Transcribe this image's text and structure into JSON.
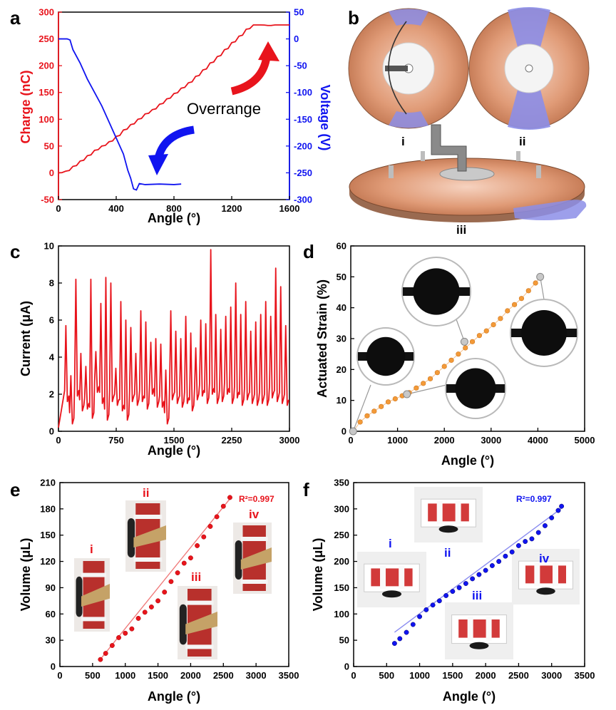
{
  "panels": {
    "a": {
      "letter": "a",
      "annotation": "Overrange"
    },
    "b": {
      "letter": "b",
      "labels": [
        "i",
        "ii",
        "iii"
      ]
    },
    "c": {
      "letter": "c"
    },
    "d": {
      "letter": "d"
    },
    "e": {
      "letter": "e",
      "r2": "R²=0.997",
      "labels": [
        "i",
        "ii",
        "iii",
        "iv"
      ]
    },
    "f": {
      "letter": "f",
      "r2": "R²=0.997",
      "labels": [
        "i",
        "ii",
        "iii",
        "iv"
      ]
    }
  },
  "colors": {
    "red": "#e8141c",
    "blue": "#1014f0",
    "orange": "#f39a38",
    "copper": "#d8906c",
    "lavender": "#8c8ee8"
  },
  "chart_data": [
    {
      "id": "a",
      "type": "line",
      "xlabel": "Angle (°)",
      "ylabel": "Charge (nC)",
      "y2label": "Voltage (V)",
      "xlim": [
        0,
        1600
      ],
      "ylim": [
        -50,
        300
      ],
      "y2lim": [
        -300,
        50
      ],
      "xticks": [
        0,
        400,
        800,
        1200,
        1600
      ],
      "yticks": [
        -50,
        0,
        50,
        100,
        150,
        200,
        250,
        300
      ],
      "y2ticks": [
        -300,
        -250,
        -200,
        -150,
        -100,
        -50,
        0,
        50
      ],
      "series": [
        {
          "axis": "left",
          "color": "#e8141c",
          "x": [
            0,
            50,
            100,
            150,
            200,
            250,
            300,
            350,
            400,
            450,
            500,
            550,
            600,
            650,
            700,
            750,
            800,
            850,
            900,
            950,
            1000,
            1050,
            1100,
            1150,
            1200,
            1250,
            1300,
            1350,
            1400,
            1450,
            1500,
            1550,
            1600
          ],
          "y": [
            0,
            3,
            12,
            22,
            32,
            42,
            50,
            58,
            68,
            80,
            90,
            100,
            110,
            118,
            128,
            138,
            148,
            158,
            168,
            180,
            192,
            205,
            217,
            230,
            243,
            255,
            268,
            276,
            276,
            275,
            276,
            276,
            276
          ]
        },
        {
          "axis": "right",
          "color": "#1014f0",
          "x": [
            0,
            60,
            80,
            100,
            150,
            200,
            250,
            300,
            350,
            400,
            450,
            480,
            500,
            520,
            540,
            560,
            600,
            700,
            800,
            850
          ],
          "y": [
            0,
            0,
            -2,
            -20,
            -45,
            -75,
            -100,
            -125,
            -155,
            -185,
            -215,
            -245,
            -260,
            -280,
            -282,
            -270,
            -272,
            -271,
            -272,
            -271
          ]
        }
      ]
    },
    {
      "id": "c",
      "type": "line",
      "xlabel": "Angle (°)",
      "ylabel": "Current (μA)",
      "xlim": [
        0,
        3000
      ],
      "ylim": [
        0,
        10
      ],
      "xticks": [
        0,
        750,
        1500,
        2250,
        3000
      ],
      "yticks": [
        0,
        2,
        4,
        6,
        8,
        10
      ],
      "series": [
        {
          "color": "#e8141c",
          "peaks": [
            5.7,
            3.0,
            8.2,
            4.2,
            3.5,
            8.2,
            4.3,
            6.9,
            8.3,
            8.0,
            3.4,
            7.0,
            6.0,
            5.6,
            4.2,
            6.5,
            5.9,
            4.8,
            5.0,
            4.7,
            3.3,
            6.5,
            5.4,
            5.0,
            6.2,
            5.3,
            4.5,
            6.0,
            5.8,
            9.8,
            6.3,
            5.5,
            6.2,
            6.7,
            8.0,
            6.3,
            7.0,
            5.4,
            5.9,
            6.3,
            7.0,
            6.2,
            8.8,
            7.8,
            5.7
          ],
          "troughs": [
            1.6,
            0.4,
            1.9,
            1.1,
            1.2,
            0.7,
            2.1,
            1.5,
            0.6,
            1.6,
            1.4,
            1.1,
            0.6,
            1.6,
            1.4,
            1.6,
            1.2,
            2.0,
            1.3,
            1.3,
            0.4,
            1.7,
            1.5,
            1.3,
            1.5,
            1.1,
            1.7,
            1.9,
            1.5,
            2.0,
            1.5,
            1.6,
            2.0,
            1.5,
            1.8,
            1.4,
            1.7,
            1.5,
            1.4,
            1.5,
            1.4,
            1.8,
            1.6,
            1.5,
            1.4
          ]
        }
      ]
    },
    {
      "id": "d",
      "type": "scatter",
      "xlabel": "Angle (°)",
      "ylabel": "Actuated Strain (%)",
      "xlim": [
        0,
        5000
      ],
      "ylim": [
        0,
        60
      ],
      "xticks": [
        0,
        1000,
        2000,
        3000,
        4000,
        5000
      ],
      "yticks": [
        0,
        10,
        20,
        30,
        40,
        50,
        60
      ],
      "series": [
        {
          "color": "#f39a38",
          "x": [
            50,
            200,
            350,
            500,
            650,
            800,
            950,
            1100,
            1250,
            1400,
            1550,
            1700,
            1850,
            2000,
            2150,
            2300,
            2450,
            2600,
            2750,
            2900,
            3050,
            3200,
            3350,
            3500,
            3650,
            3800,
            3950,
            4050
          ],
          "y": [
            0,
            3,
            5,
            6.5,
            8,
            9.5,
            10.5,
            11.5,
            12.5,
            14,
            15.5,
            17,
            19,
            21,
            23,
            25,
            27,
            29,
            31,
            32.5,
            34.5,
            36.5,
            39,
            41,
            43,
            45.5,
            48,
            50
          ]
        }
      ],
      "highlighted": [
        {
          "x": 50,
          "y": 0
        },
        {
          "x": 1200,
          "y": 12
        },
        {
          "x": 2430,
          "y": 29
        },
        {
          "x": 4050,
          "y": 50
        }
      ]
    },
    {
      "id": "e",
      "type": "scatter",
      "xlabel": "Angle (°)",
      "ylabel": "Volume (μL)",
      "xlim": [
        0,
        3500
      ],
      "ylim": [
        0,
        210
      ],
      "xticks": [
        0,
        500,
        1000,
        1500,
        2000,
        2500,
        3000,
        3500
      ],
      "yticks": [
        0,
        30,
        60,
        90,
        120,
        150,
        180,
        210
      ],
      "fit": {
        "slope": 0.0925,
        "intercept": -49
      },
      "series": [
        {
          "color": "#e8141c",
          "x": [
            620,
            700,
            800,
            900,
            1000,
            1100,
            1200,
            1300,
            1400,
            1500,
            1600,
            1700,
            1800,
            1900,
            2000,
            2100,
            2200,
            2300,
            2400,
            2500,
            2600
          ],
          "y": [
            8,
            15,
            24,
            33,
            38,
            43,
            55,
            62,
            68,
            75,
            85,
            97,
            107,
            118,
            124,
            138,
            148,
            160,
            171,
            183,
            193
          ]
        }
      ]
    },
    {
      "id": "f",
      "type": "scatter",
      "xlabel": "Angle (°)",
      "ylabel": "Volume (μL)",
      "xlim": [
        0,
        3500
      ],
      "ylim": [
        0,
        350
      ],
      "xticks": [
        0,
        500,
        1000,
        1500,
        2000,
        2500,
        3000,
        3500
      ],
      "yticks": [
        0,
        50,
        100,
        150,
        200,
        250,
        300,
        350
      ],
      "fit": {
        "slope": 0.0972,
        "intercept": -5
      },
      "series": [
        {
          "color": "#1014f0",
          "x": [
            620,
            700,
            800,
            900,
            1000,
            1100,
            1200,
            1300,
            1400,
            1500,
            1600,
            1700,
            1800,
            1900,
            2000,
            2100,
            2200,
            2300,
            2400,
            2500,
            2600,
            2700,
            2800,
            2900,
            3000,
            3100,
            3150
          ],
          "y": [
            44,
            53,
            65,
            80,
            95,
            108,
            117,
            125,
            135,
            143,
            150,
            158,
            167,
            175,
            183,
            192,
            200,
            210,
            218,
            230,
            238,
            243,
            255,
            268,
            283,
            297,
            305
          ]
        }
      ]
    }
  ]
}
